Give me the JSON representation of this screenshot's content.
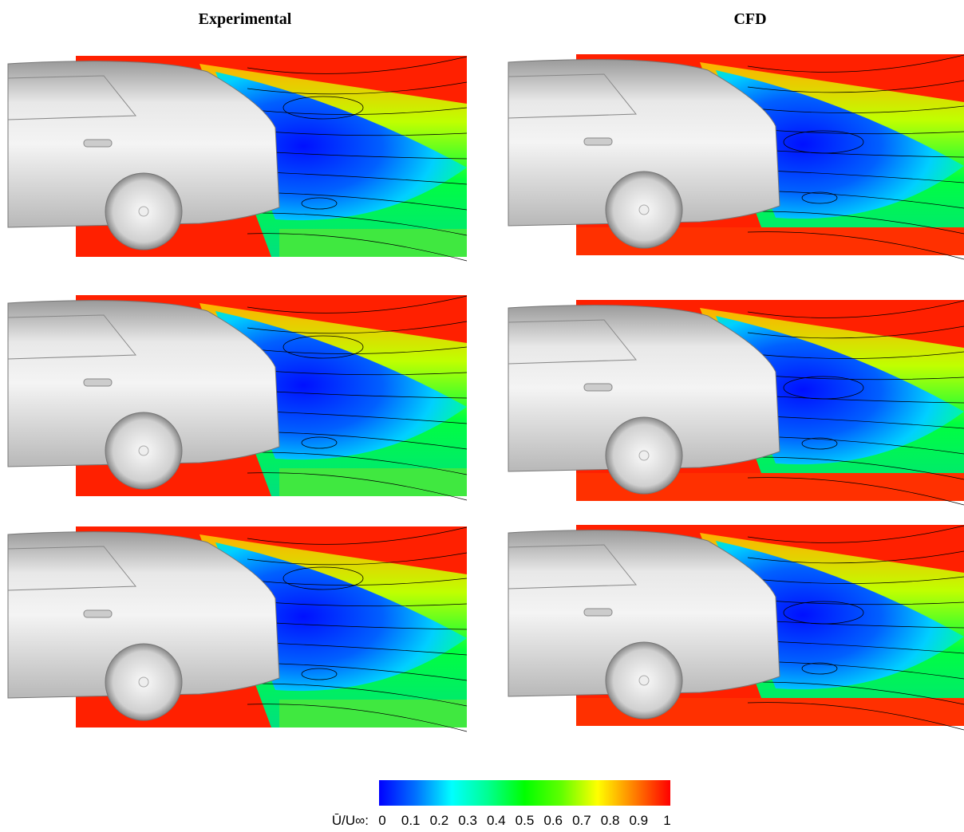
{
  "columns": [
    "Experimental",
    "CFD"
  ],
  "colorbar": {
    "label": "Ū/U∞:",
    "lim": [
      0,
      1
    ],
    "ticks": [
      0,
      0.1,
      0.2,
      0.3,
      0.4,
      0.5,
      0.6,
      0.7,
      0.8,
      0.9,
      1
    ],
    "colors": [
      "#0000ff",
      "#0070ff",
      "#00ffff",
      "#00ff90",
      "#00ff00",
      "#60ff00",
      "#ffff00",
      "#ff8000",
      "#ff0000"
    ]
  }
}
